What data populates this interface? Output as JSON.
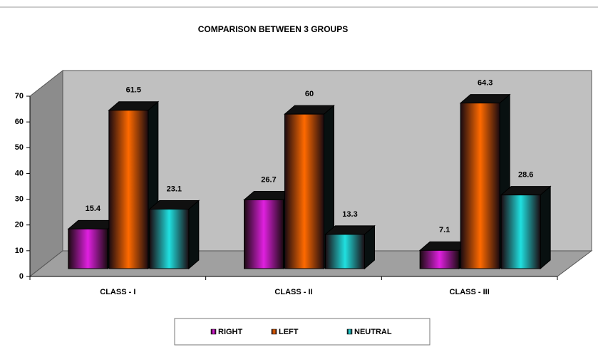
{
  "chart_data": {
    "type": "bar3d",
    "title": "COMPARISON BETWEEN 3 GROUPS",
    "categories": [
      "CLASS - I",
      "CLASS - II",
      "CLASS - III"
    ],
    "series": [
      {
        "name": "RIGHT",
        "color": "#e020e0",
        "values": [
          15.4,
          26.7,
          7.1
        ]
      },
      {
        "name": "LEFT",
        "color": "#ff6a00",
        "values": [
          61.5,
          60,
          64.3
        ]
      },
      {
        "name": "NEUTRAL",
        "color": "#20e0e0",
        "values": [
          23.1,
          13.3,
          28.6
        ]
      }
    ],
    "ylim": [
      0,
      70
    ],
    "yticks": [
      0,
      10,
      20,
      30,
      40,
      50,
      60,
      70
    ],
    "legend": "bottom"
  }
}
